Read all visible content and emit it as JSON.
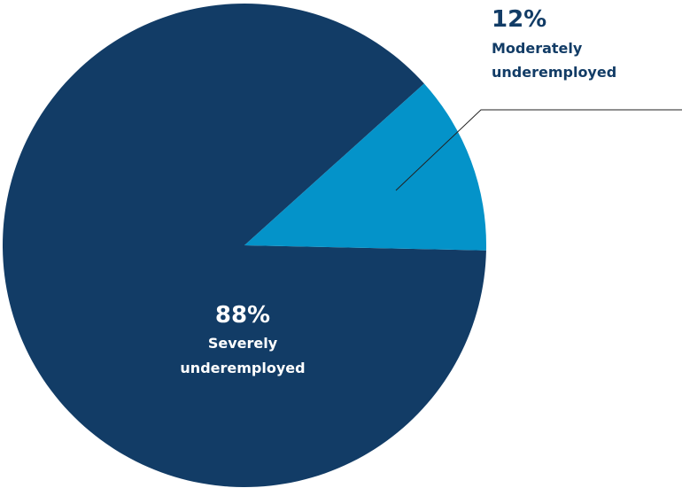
{
  "chart_data": {
    "type": "pie",
    "slices": [
      {
        "percent_label": "88%",
        "label_lines": [
          "Severely",
          "underemployed"
        ],
        "value": 88,
        "color": "#123c66",
        "label_color": "#ffffff"
      },
      {
        "percent_label": "12%",
        "label_lines": [
          "Moderately",
          "underemployed"
        ],
        "value": 12,
        "color": "#0493c9",
        "label_color": "#123c66"
      }
    ],
    "legend": "none",
    "labels": "callout"
  }
}
